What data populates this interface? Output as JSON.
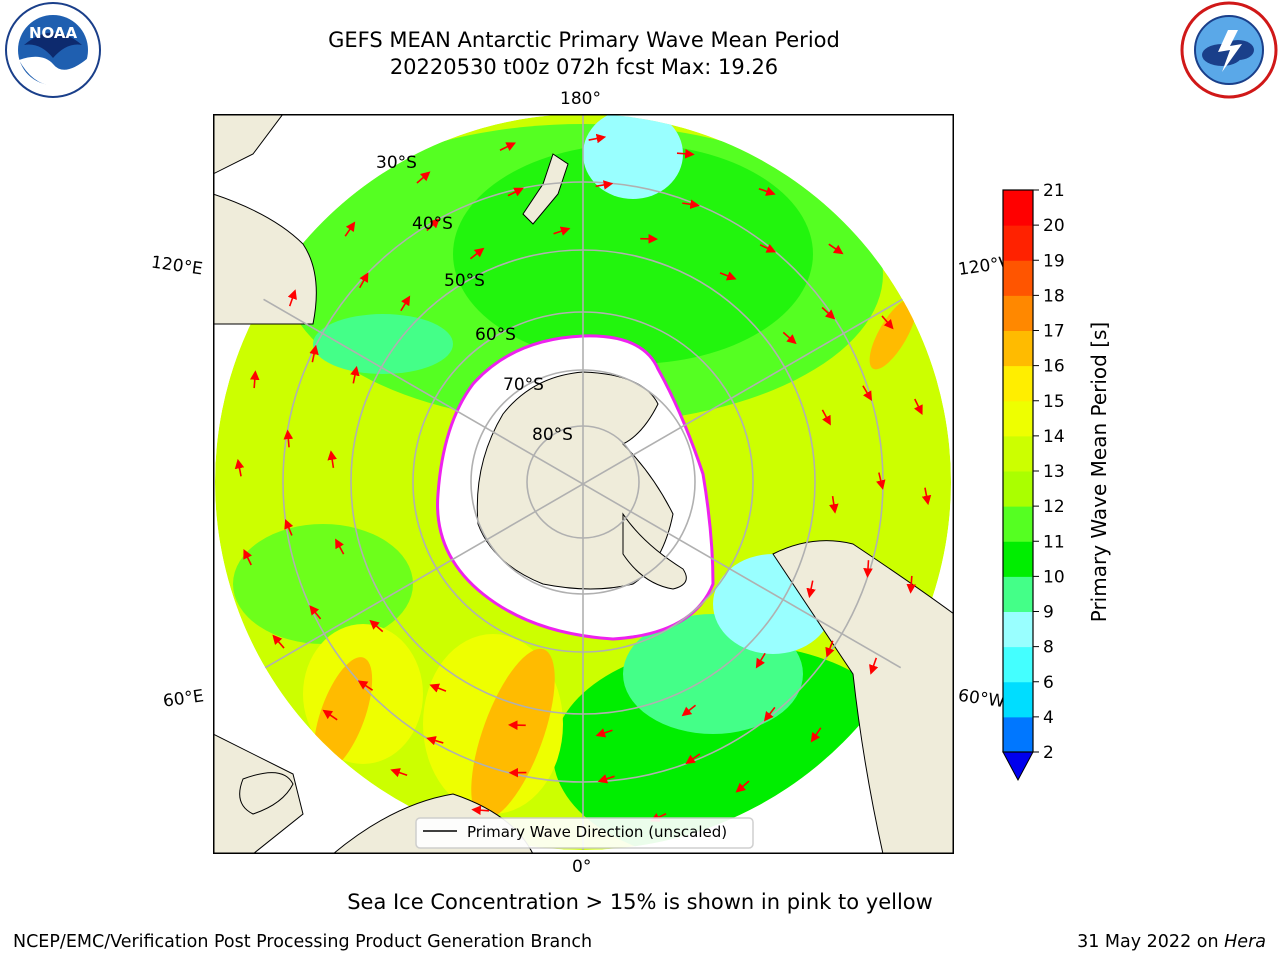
{
  "title_line1": "GEFS MEAN Antarctic Primary Wave Mean Period",
  "title_line2": "20220530 t00z 072h fcst   Max: 19.26",
  "logos": {
    "left": "noaa-logo",
    "left_text": "NOAA",
    "right": "nws-logo"
  },
  "map": {
    "projection": "south-polar-stereographic",
    "lon_labels": {
      "top": "180°",
      "bottom": "0°",
      "upper_left": "120°E",
      "lower_left": "60°E",
      "upper_right": "120°W",
      "lower_right": "60°W"
    },
    "lat_labels": [
      "30°S",
      "40°S",
      "50°S",
      "60°S",
      "70°S",
      "80°S"
    ],
    "legend_label": "Primary Wave Direction (unscaled)",
    "colors": {
      "land": "#efecda",
      "ice": "#ffffff",
      "coast": "#000000",
      "grid": "#b0b0b0",
      "arrow": "#ff0000"
    }
  },
  "colorbar": {
    "label": "Primary Wave Mean Period [s]",
    "ticks": [
      "2",
      "4",
      "6",
      "8",
      "9",
      "10",
      "11",
      "12",
      "13",
      "14",
      "15",
      "16",
      "17",
      "18",
      "19",
      "20",
      "21"
    ],
    "colors": [
      "#0000ee",
      "#0077ff",
      "#00ddff",
      "#44ffff",
      "#99ffff",
      "#44ff88",
      "#00ee00",
      "#55ff22",
      "#aaff00",
      "#ccff00",
      "#eeff00",
      "#ffee00",
      "#ffbb00",
      "#ff8800",
      "#ff5500",
      "#ff2200",
      "#ff0000"
    ]
  },
  "subtitle": "Sea Ice Concentration > 15% is shown in pink to yellow",
  "footer_left": "NCEP/EMC/Verification Post Processing Product Generation Branch",
  "footer_right_text": "31 May 2022 on ",
  "footer_right_machine": "Hera"
}
